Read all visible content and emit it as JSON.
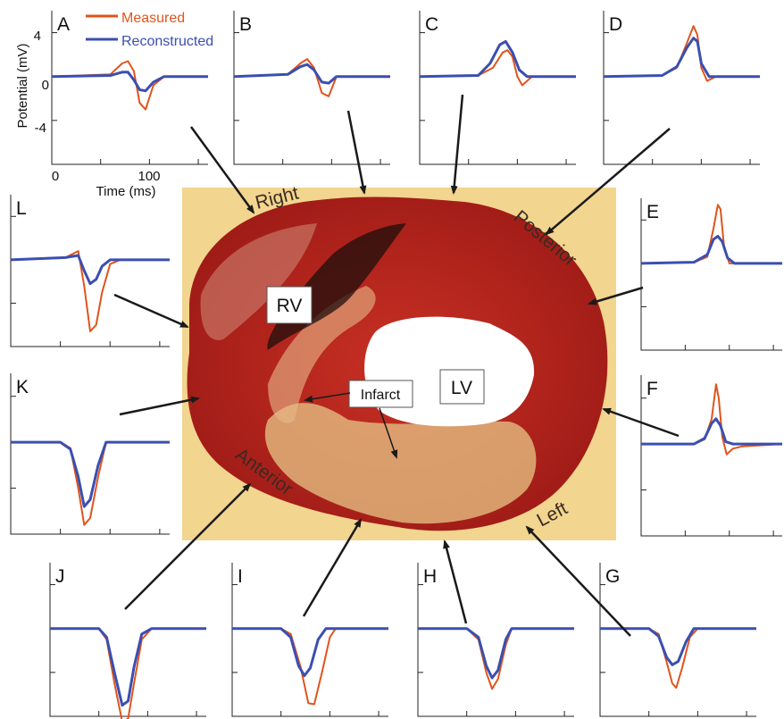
{
  "legend": {
    "measured": "Measured",
    "reconstructed": "Reconstructed",
    "measured_color": "#e0541c",
    "reconstructed_color": "#3b4fb0"
  },
  "axes": {
    "ylabel": "Potential (mV)",
    "xlabel": "Time (ms)",
    "yticks": [
      "4",
      "0",
      "-4"
    ],
    "xticks": [
      "0",
      "100"
    ]
  },
  "heart": {
    "rv": "RV",
    "lv": "LV",
    "infarct": "Infarct",
    "sides": {
      "right": "Right",
      "posterior": "Posterior",
      "left": "Left",
      "anterior": "Anterior"
    },
    "tissue_color": "#b3221c",
    "background_color": "#f2d58e"
  },
  "chart_data": {
    "type": "line",
    "x_units": "ms",
    "y_units": "mV",
    "xlim": [
      0,
      160
    ],
    "ylim": [
      -8,
      6
    ],
    "panels": [
      {
        "id": "A",
        "series": [
          {
            "name": "Measured",
            "x": [
              0,
              60,
              72,
              78,
              84,
              90,
              96,
              104,
              115,
              160
            ],
            "y": [
              0,
              0.2,
              1.2,
              1.4,
              0.5,
              -2.4,
              -3.0,
              -0.8,
              0,
              0
            ]
          },
          {
            "name": "Reconstructed",
            "x": [
              0,
              60,
              72,
              78,
              84,
              90,
              96,
              104,
              115,
              160
            ],
            "y": [
              0,
              0.1,
              0.4,
              0.4,
              -0.3,
              -1.2,
              -1.3,
              -0.5,
              0,
              0
            ]
          }
        ]
      },
      {
        "id": "B",
        "series": [
          {
            "name": "Measured",
            "x": [
              0,
              55,
              68,
              75,
              82,
              90,
              97,
              105,
              160
            ],
            "y": [
              0,
              0.2,
              1.2,
              1.6,
              0.8,
              -1.5,
              -1.8,
              0,
              0
            ]
          },
          {
            "name": "Reconstructed",
            "x": [
              0,
              55,
              68,
              75,
              82,
              90,
              97,
              105,
              160
            ],
            "y": [
              0,
              0.2,
              0.9,
              1.1,
              0.6,
              -0.5,
              -0.6,
              0,
              0
            ]
          }
        ]
      },
      {
        "id": "C",
        "series": [
          {
            "name": "Measured",
            "x": [
              0,
              60,
              75,
              85,
              90,
              95,
              100,
              105,
              115,
              160
            ],
            "y": [
              0,
              0.1,
              0.8,
              2.2,
              2.4,
              1.8,
              0,
              -0.8,
              0,
              0
            ]
          },
          {
            "name": "Reconstructed",
            "x": [
              0,
              60,
              72,
              82,
              88,
              95,
              102,
              110,
              160
            ],
            "y": [
              0,
              0.1,
              1.2,
              2.9,
              3.2,
              2.2,
              0.6,
              0,
              0
            ]
          }
        ]
      },
      {
        "id": "D",
        "series": [
          {
            "name": "Measured",
            "x": [
              0,
              60,
              75,
              85,
              92,
              96,
              100,
              106,
              115,
              160
            ],
            "y": [
              0,
              0.1,
              0.8,
              3.0,
              4.6,
              3.8,
              0.8,
              -0.4,
              0,
              0
            ]
          },
          {
            "name": "Reconstructed",
            "x": [
              0,
              60,
              75,
              85,
              92,
              96,
              100,
              108,
              160
            ],
            "y": [
              0,
              0.1,
              0.9,
              2.6,
              3.5,
              3.2,
              1.2,
              0,
              0
            ]
          }
        ]
      },
      {
        "id": "E",
        "series": [
          {
            "name": "Measured",
            "x": [
              0,
              60,
              75,
              82,
              87,
              90,
              94,
              100,
              110,
              160
            ],
            "y": [
              0,
              0.1,
              0.6,
              3.2,
              5.4,
              5.0,
              1.6,
              0,
              0,
              0
            ]
          },
          {
            "name": "Reconstructed",
            "x": [
              0,
              60,
              75,
              82,
              87,
              92,
              98,
              106,
              160
            ],
            "y": [
              0,
              0.1,
              0.8,
              2.2,
              2.5,
              2.0,
              0.5,
              0,
              0
            ]
          }
        ]
      },
      {
        "id": "F",
        "series": [
          {
            "name": "Measured",
            "x": [
              0,
              60,
              72,
              80,
              85,
              88,
              92,
              97,
              104,
              115,
              160
            ],
            "y": [
              0,
              0,
              0.4,
              2.2,
              5.2,
              4.0,
              0.6,
              -0.9,
              -0.4,
              -0.2,
              0
            ]
          },
          {
            "name": "Reconstructed",
            "x": [
              0,
              60,
              72,
              80,
              85,
              90,
              96,
              104,
              160
            ],
            "y": [
              0,
              0,
              0.5,
              1.8,
              2.2,
              1.6,
              0.2,
              0,
              0
            ]
          }
        ]
      },
      {
        "id": "G",
        "series": [
          {
            "name": "Measured",
            "x": [
              0,
              50,
              60,
              68,
              74,
              78,
              84,
              92,
              100,
              160
            ],
            "y": [
              0,
              0,
              -0.5,
              -3.0,
              -5.0,
              -5.4,
              -3.6,
              -0.8,
              0,
              0
            ]
          },
          {
            "name": "Reconstructed",
            "x": [
              0,
              50,
              60,
              68,
              74,
              80,
              88,
              96,
              160
            ],
            "y": [
              0,
              0,
              -0.7,
              -2.6,
              -3.3,
              -3.0,
              -1.2,
              0,
              0
            ]
          }
        ]
      },
      {
        "id": "H",
        "series": [
          {
            "name": "Measured",
            "x": [
              0,
              50,
              62,
              70,
              76,
              82,
              90,
              96,
              160
            ],
            "y": [
              0,
              0,
              -1.0,
              -4.0,
              -5.5,
              -4.6,
              -1.5,
              0,
              0
            ]
          },
          {
            "name": "Reconstructed",
            "x": [
              0,
              50,
              62,
              70,
              76,
              82,
              90,
              96,
              160
            ],
            "y": [
              0,
              0,
              -0.8,
              -3.4,
              -4.5,
              -3.8,
              -1.0,
              0,
              0
            ]
          }
        ]
      },
      {
        "id": "I",
        "series": [
          {
            "name": "Measured",
            "x": [
              0,
              50,
              60,
              70,
              78,
              84,
              92,
              100,
              106,
              160
            ],
            "y": [
              0,
              0,
              -0.5,
              -3.5,
              -6.8,
              -6.9,
              -4.0,
              -0.8,
              0,
              0
            ]
          },
          {
            "name": "Reconstructed",
            "x": [
              0,
              50,
              60,
              68,
              74,
              80,
              88,
              96,
              160
            ],
            "y": [
              0,
              0,
              -0.8,
              -3.4,
              -4.3,
              -3.6,
              -1.0,
              0,
              0
            ]
          }
        ]
      },
      {
        "id": "J",
        "series": [
          {
            "name": "Measured",
            "x": [
              0,
              50,
              58,
              66,
              74,
              80,
              86,
              94,
              104,
              160
            ],
            "y": [
              0,
              0,
              -1.0,
              -5.0,
              -8.5,
              -8.2,
              -5.0,
              -1.0,
              0,
              0
            ]
          },
          {
            "name": "Reconstructed",
            "x": [
              0,
              50,
              58,
              66,
              74,
              80,
              86,
              94,
              104,
              160
            ],
            "y": [
              0,
              0,
              -0.8,
              -4.0,
              -7.0,
              -6.6,
              -3.5,
              -0.5,
              0,
              0
            ]
          }
        ]
      },
      {
        "id": "K",
        "series": [
          {
            "name": "Measured",
            "x": [
              0,
              50,
              60,
              68,
              74,
              80,
              88,
              96,
              160
            ],
            "y": [
              0,
              0,
              -0.5,
              -4.0,
              -7.2,
              -6.6,
              -3.0,
              0,
              0
            ]
          },
          {
            "name": "Reconstructed",
            "x": [
              0,
              50,
              60,
              68,
              74,
              80,
              88,
              96,
              160
            ],
            "y": [
              0,
              0,
              -0.6,
              -3.0,
              -5.6,
              -5.0,
              -2.0,
              0,
              0
            ]
          }
        ]
      },
      {
        "id": "L",
        "series": [
          {
            "name": "Measured",
            "x": [
              0,
              55,
              68,
              74,
              80,
              86,
              92,
              100,
              110,
              160
            ],
            "y": [
              0,
              0.2,
              0.8,
              -2.4,
              -6.6,
              -6.0,
              -3.0,
              -0.4,
              0,
              0
            ]
          },
          {
            "name": "Reconstructed",
            "x": [
              0,
              55,
              68,
              74,
              80,
              86,
              92,
              100,
              160
            ],
            "y": [
              0,
              0.2,
              0.4,
              -1.0,
              -2.2,
              -1.8,
              -0.6,
              0,
              0
            ]
          }
        ]
      }
    ]
  }
}
